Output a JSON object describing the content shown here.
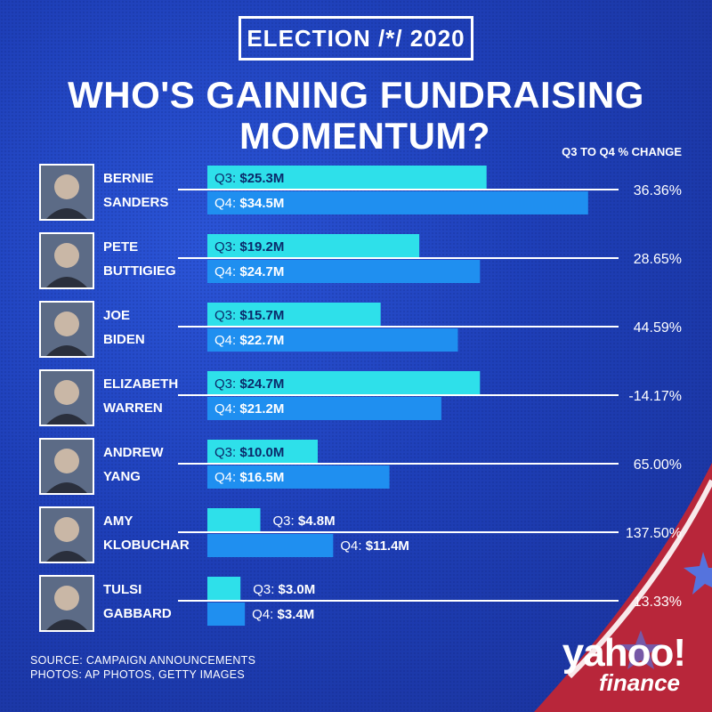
{
  "badge": "ELECTION /*/ 2020",
  "title_line1": "WHO'S GAINING FUNDRAISING",
  "title_line2": "MOMENTUM?",
  "change_header": "Q3 TO Q4 % CHANGE",
  "q3_prefix": "Q3:",
  "q4_prefix": "Q4:",
  "source": "SOURCE:  CAMPAIGN ANNOUNCEMENTS",
  "photos": "PHOTOS:  AP PHOTOS, GETTY IMAGES",
  "logo_text": "yahoo!",
  "logo_sub": "finance",
  "colors": {
    "q3": "#2ee0ea",
    "q4": "#1f8ff0",
    "background": "#1d3fb4",
    "accent_red": "#b8263a"
  },
  "chart_data": {
    "type": "bar",
    "categories": [
      "BERNIE SANDERS",
      "PETE BUTTIGIEG",
      "JOE BIDEN",
      "ELIZABETH WARREN",
      "ANDREW YANG",
      "AMY KLOBUCHAR",
      "TULSI GABBARD"
    ],
    "name_lines": [
      [
        "BERNIE",
        "SANDERS"
      ],
      [
        "PETE",
        "BUTTIGIEG"
      ],
      [
        "JOE",
        "BIDEN"
      ],
      [
        "ELIZABETH",
        "WARREN"
      ],
      [
        "ANDREW",
        "YANG"
      ],
      [
        "AMY",
        "KLOBUCHAR"
      ],
      [
        "TULSI",
        "GABBARD"
      ]
    ],
    "series": [
      {
        "name": "Q3",
        "values": [
          25.3,
          19.2,
          15.7,
          24.7,
          10.0,
          4.8,
          3.0
        ],
        "labels": [
          "$25.3M",
          "$19.2M",
          "$15.7M",
          "$24.7M",
          "$10.0M",
          "$4.8M",
          "$3.0M"
        ]
      },
      {
        "name": "Q4",
        "values": [
          34.5,
          24.7,
          22.7,
          21.2,
          16.5,
          11.4,
          3.4
        ],
        "labels": [
          "$34.5M",
          "$24.7M",
          "$22.7M",
          "$21.2M",
          "$16.5M",
          "$11.4M",
          "$3.4M"
        ]
      }
    ],
    "pct_change": [
      "36.36%",
      "28.65%",
      "44.59%",
      "-14.17%",
      "65.00%",
      "137.50%",
      "13.33%"
    ],
    "xlim": [
      0,
      35
    ],
    "orientation": "horizontal"
  }
}
